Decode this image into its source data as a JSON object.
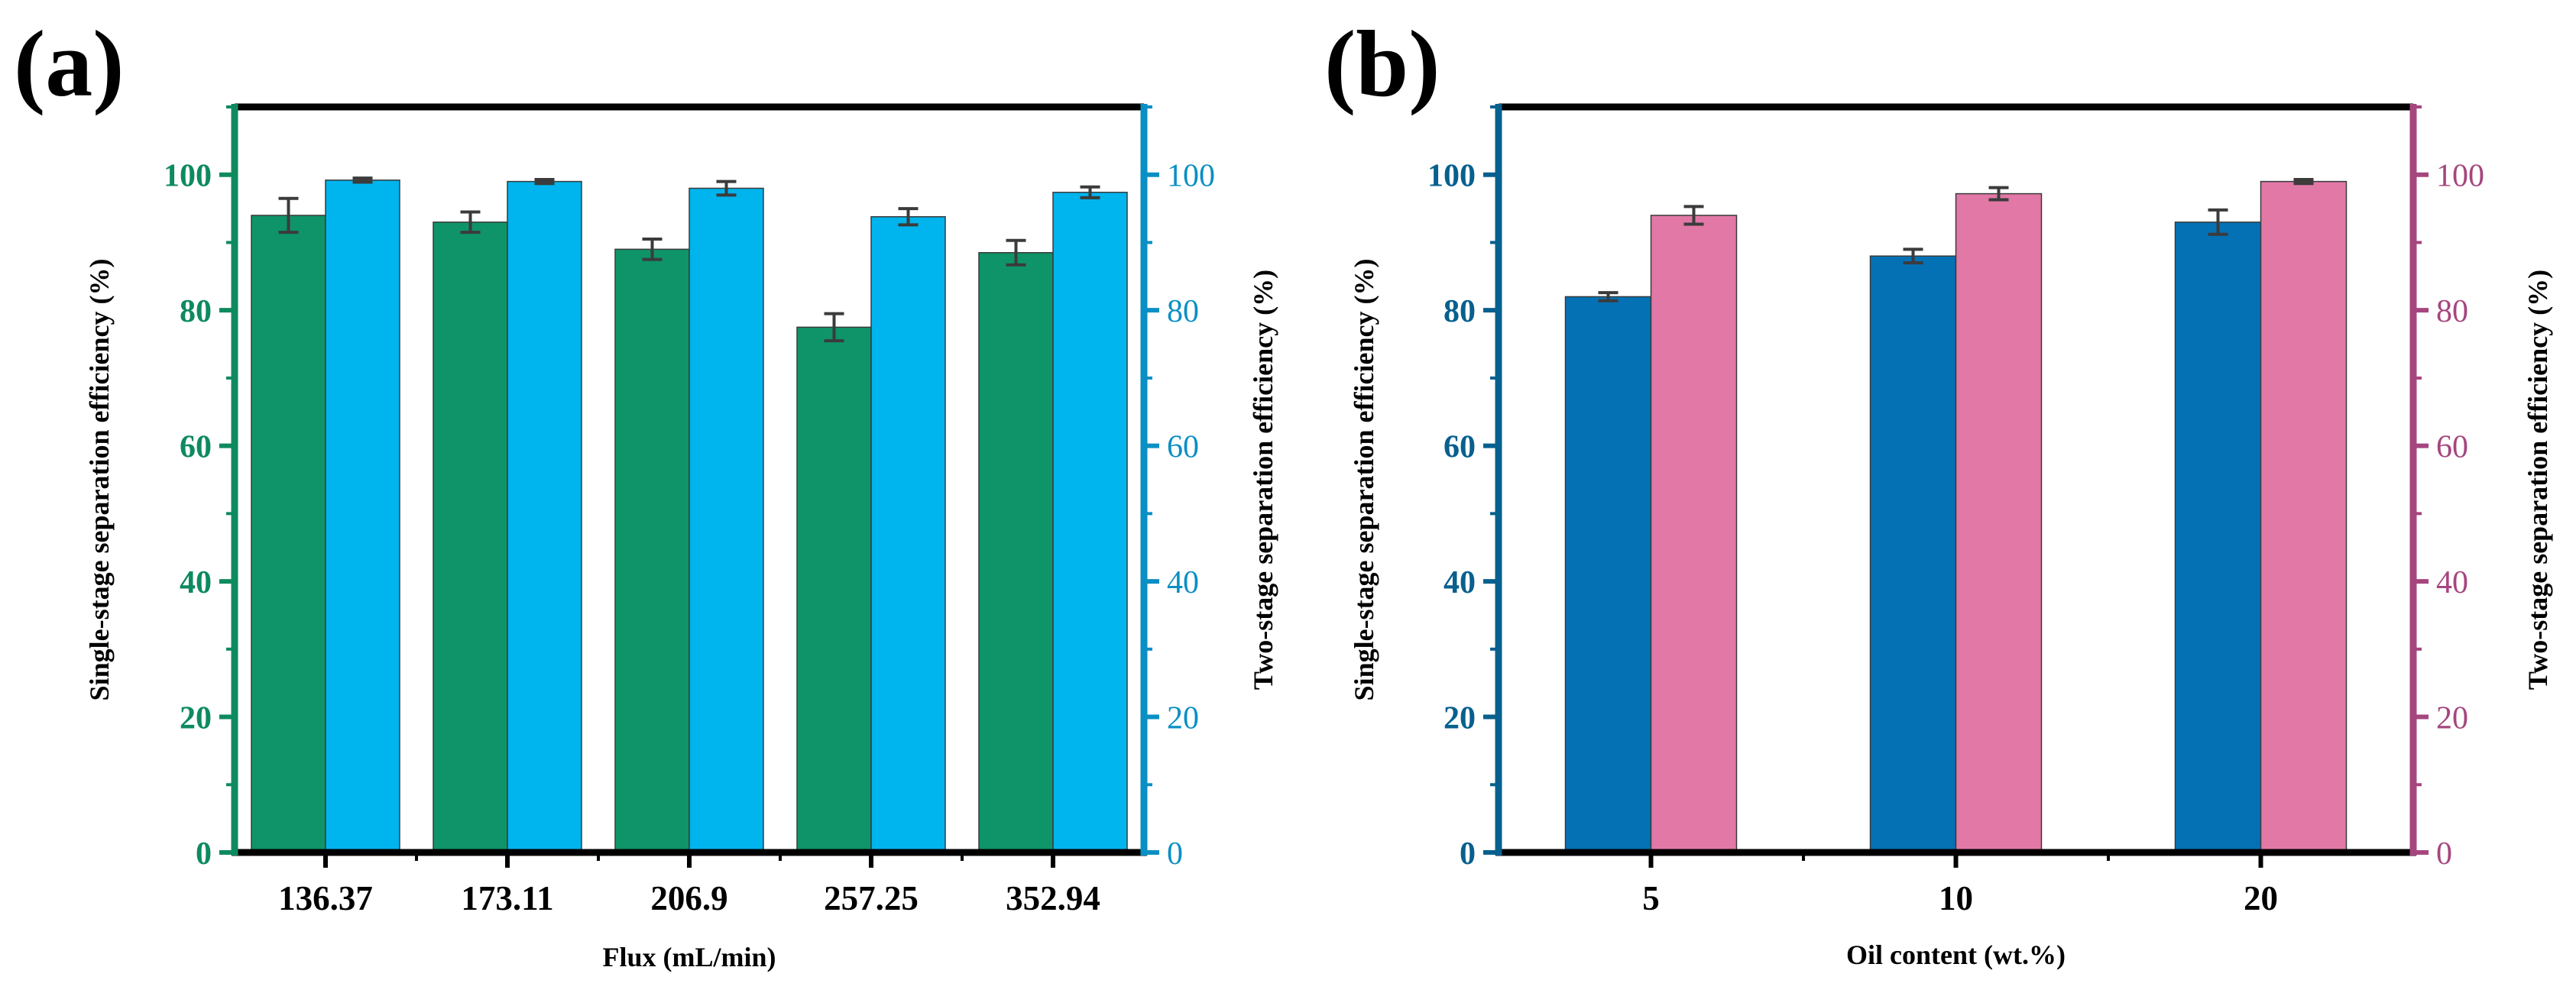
{
  "figure": {
    "panel_a_label": "(a)",
    "panel_b_label": "(b)"
  },
  "chart_data": [
    {
      "panel": "(a)",
      "type": "bar",
      "xlabel": "Flux (mL/min)",
      "ylabel_left": "Single-stage separation efficiency (%)",
      "ylabel_right": "Two-stage separation efficiency (%)",
      "ylim": [
        0,
        110
      ],
      "yticks": [
        0,
        20,
        40,
        60,
        80,
        100
      ],
      "categories": [
        "136.37",
        "173.11",
        "206.9",
        "257.25",
        "352.94"
      ],
      "series": [
        {
          "name": "Single-stage",
          "axis": "left",
          "color": "#0e9468",
          "values": [
            94.0,
            93.0,
            89.0,
            77.5,
            88.5
          ],
          "errors": [
            2.5,
            1.5,
            1.5,
            2.0,
            1.8
          ]
        },
        {
          "name": "Two-stage",
          "axis": "right",
          "color": "#00b4ee",
          "values": [
            99.2,
            99.0,
            98.0,
            93.8,
            97.4
          ],
          "errors": [
            0.3,
            0.3,
            1.0,
            1.2,
            0.8
          ]
        }
      ],
      "colors": {
        "left_axis": "#0e8a5f",
        "right_axis": "#0a8fc4"
      }
    },
    {
      "panel": "(b)",
      "type": "bar",
      "xlabel": "Oil content (wt.%)",
      "ylabel_left": "Single-stage separation efficiency (%)",
      "ylabel_right": "Two-stage separation efficiency (%)",
      "ylim": [
        0,
        110
      ],
      "yticks": [
        0,
        20,
        40,
        60,
        80,
        100
      ],
      "categories": [
        "5",
        "10",
        "20"
      ],
      "series": [
        {
          "name": "Single-stage",
          "axis": "left",
          "color": "#0471b5",
          "values": [
            82.0,
            88.0,
            93.0
          ],
          "errors": [
            0.6,
            1.0,
            1.8
          ]
        },
        {
          "name": "Two-stage",
          "axis": "right",
          "color": "#e278a6",
          "values": [
            94.0,
            97.2,
            99.0
          ],
          "errors": [
            1.3,
            0.9,
            0.3
          ]
        }
      ],
      "colors": {
        "left_axis": "#07608e",
        "right_axis": "#a5467e"
      }
    }
  ]
}
